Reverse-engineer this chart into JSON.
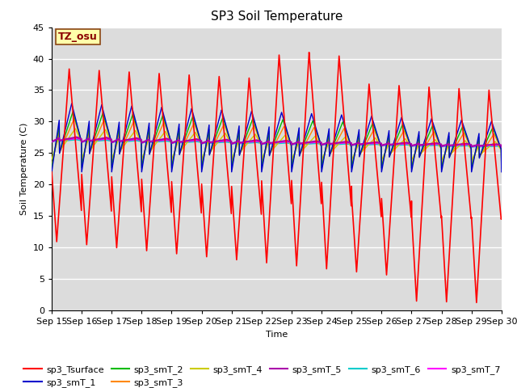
{
  "title": "SP3 Soil Temperature",
  "xlabel": "Time",
  "ylabel": "Soil Temperature (C)",
  "xlim": [
    0,
    360
  ],
  "ylim": [
    0,
    45
  ],
  "yticks": [
    0,
    5,
    10,
    15,
    20,
    25,
    30,
    35,
    40,
    45
  ],
  "xtick_labels": [
    "Sep 15",
    "Sep 16",
    "Sep 17",
    "Sep 18",
    "Sep 19",
    "Sep 20",
    "Sep 21",
    "Sep 22",
    "Sep 23",
    "Sep 24",
    "Sep 25",
    "Sep 26",
    "Sep 27",
    "Sep 28",
    "Sep 29",
    "Sep 30"
  ],
  "annotation_text": "TZ_osu",
  "annotation_box_facecolor": "#ffffaa",
  "annotation_box_edgecolor": "#8b4513",
  "series_colors": {
    "sp3_Tsurface": "#ff0000",
    "sp3_smT_1": "#0000cc",
    "sp3_smT_2": "#00bb00",
    "sp3_smT_3": "#ff8800",
    "sp3_smT_4": "#cccc00",
    "sp3_smT_5": "#aa00aa",
    "sp3_smT_6": "#00cccc",
    "sp3_smT_7": "#ff00ff"
  },
  "bg_color": "#dcdcdc",
  "grid_color": "#ffffff",
  "fig_facecolor": "#ffffff"
}
